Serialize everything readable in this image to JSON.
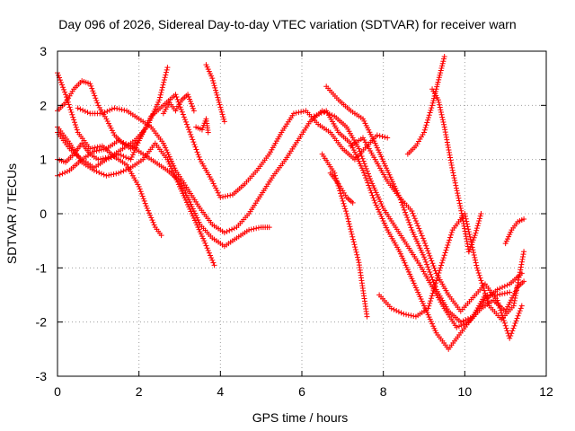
{
  "chart_data": {
    "type": "scatter",
    "title": "Day 096 of 2026, Sidereal Day-to-day VTEC variation (SDTVAR) for receiver warn",
    "xlabel": "GPS time / hours",
    "ylabel": "SDTVAR / TECUs",
    "xlim": [
      0,
      12
    ],
    "ylim": [
      -3,
      3
    ],
    "xticks": [
      "0",
      "2",
      "4",
      "6",
      "8",
      "10",
      "12"
    ],
    "yticks": [
      "-3",
      "-2",
      "-1",
      "0",
      "1",
      "2",
      "3"
    ],
    "grid": true,
    "legend": "none",
    "marker": "plus",
    "color": "#ff0000",
    "series": [
      {
        "x": [
          0.0,
          0.2,
          0.5,
          0.8,
          1.1,
          1.4,
          1.7,
          2.0,
          2.2,
          2.4,
          2.55
        ],
        "y": [
          2.6,
          2.2,
          1.5,
          1.2,
          1.25,
          1.05,
          0.9,
          0.5,
          0.1,
          -0.25,
          -0.4
        ]
      },
      {
        "x": [
          0.0,
          0.3,
          0.6,
          0.9,
          1.2,
          1.5,
          1.8,
          2.1,
          2.4,
          2.7,
          3.0,
          3.2,
          3.5,
          3.8,
          4.1,
          4.4,
          4.7,
          5.0,
          5.2
        ],
        "y": [
          0.7,
          0.8,
          1.0,
          1.15,
          1.2,
          1.35,
          1.25,
          1.1,
          0.95,
          0.8,
          0.6,
          0.3,
          -0.2,
          -0.45,
          -0.6,
          -0.45,
          -0.3,
          -0.25,
          -0.25
        ]
      },
      {
        "x": [
          0.0,
          0.2,
          0.4,
          0.6,
          0.8,
          1.0,
          1.3,
          1.6,
          1.9,
          2.2,
          2.5,
          2.7
        ],
        "y": [
          1.0,
          0.95,
          1.1,
          1.3,
          1.1,
          1.0,
          1.05,
          1.2,
          1.35,
          1.6,
          2.1,
          2.7
        ]
      },
      {
        "x": [
          0.0,
          0.2,
          0.4,
          0.6,
          0.8,
          1.0,
          1.2,
          1.4,
          1.6,
          1.8,
          2.0,
          2.1
        ],
        "y": [
          1.9,
          2.05,
          2.3,
          2.45,
          2.4,
          2.0,
          1.75,
          1.45,
          1.3,
          1.2,
          1.35,
          1.5
        ]
      },
      {
        "x": [
          0.0,
          0.3,
          0.6,
          0.9,
          1.2,
          1.5,
          1.8,
          2.1,
          2.4,
          2.7,
          3.0,
          3.3,
          3.6,
          3.85
        ],
        "y": [
          1.6,
          1.3,
          0.95,
          0.8,
          0.7,
          0.75,
          0.85,
          1.0,
          1.3,
          1.0,
          0.5,
          0.0,
          -0.5,
          -0.95
        ]
      },
      {
        "x": [
          0.0,
          0.3,
          0.6,
          0.9,
          1.2,
          1.5,
          1.8,
          2.0,
          2.3,
          2.6,
          2.9,
          3.2,
          3.5,
          3.8,
          4.0,
          4.3,
          4.6,
          4.9,
          5.2,
          5.5,
          5.8,
          6.1,
          6.4,
          6.7,
          7.0,
          7.3,
          7.6,
          7.85,
          8.1
        ],
        "y": [
          1.5,
          1.2,
          1.0,
          0.85,
          1.0,
          1.1,
          1.0,
          1.35,
          1.8,
          2.0,
          2.2,
          1.6,
          1.0,
          0.6,
          0.3,
          0.35,
          0.55,
          0.8,
          1.1,
          1.5,
          1.85,
          1.9,
          1.65,
          1.5,
          1.2,
          1.0,
          1.25,
          1.45,
          1.4
        ]
      },
      {
        "x": [
          0.5,
          0.8,
          1.1,
          1.4,
          1.7,
          2.0,
          2.3,
          2.6,
          2.9,
          3.2,
          3.5,
          3.8,
          4.1,
          4.4,
          4.7,
          5.0,
          5.3,
          5.6,
          5.9,
          6.2,
          6.5,
          6.8,
          7.1,
          7.4,
          7.7,
          8.0,
          8.3,
          8.6,
          8.9,
          9.2,
          9.5,
          9.8,
          10.1,
          10.4,
          10.7,
          11.0,
          11.3,
          11.45
        ],
        "y": [
          1.95,
          1.85,
          1.85,
          1.95,
          1.9,
          1.75,
          1.6,
          1.3,
          0.8,
          0.45,
          0.1,
          -0.2,
          -0.35,
          -0.25,
          0.0,
          0.35,
          0.7,
          1.0,
          1.35,
          1.7,
          1.9,
          1.8,
          1.6,
          1.2,
          0.6,
          0.1,
          -0.25,
          -0.6,
          -0.95,
          -1.35,
          -1.75,
          -2.1,
          -2.0,
          -1.75,
          -1.6,
          -1.8,
          -1.35,
          -1.25
        ]
      },
      {
        "x": [
          2.6,
          2.75,
          2.9,
          3.05,
          3.2,
          3.35
        ],
        "y": [
          1.85,
          2.05,
          1.9,
          2.1,
          2.2,
          1.9
        ]
      },
      {
        "x": [
          3.65,
          3.8,
          3.95,
          4.1
        ],
        "y": [
          2.75,
          2.5,
          2.1,
          1.7
        ]
      },
      {
        "x": [
          3.4,
          3.55,
          3.65,
          3.7
        ],
        "y": [
          1.6,
          1.55,
          1.75,
          1.5
        ]
      },
      {
        "x": [
          6.3,
          6.6,
          6.9,
          7.2,
          7.5,
          7.8,
          8.1,
          8.4,
          8.7,
          9.0,
          9.3,
          9.6,
          9.9,
          10.2,
          10.5,
          10.8,
          11.1,
          11.4
        ],
        "y": [
          1.8,
          1.9,
          1.5,
          1.3,
          0.8,
          0.2,
          -0.3,
          -0.7,
          -1.2,
          -1.7,
          -2.2,
          -2.5,
          -2.2,
          -1.9,
          -1.6,
          -1.4,
          -1.3,
          -1.1
        ]
      },
      {
        "x": [
          6.6,
          6.9,
          7.2,
          7.5,
          7.8,
          8.1,
          8.4,
          8.7,
          9.0,
          9.3,
          9.6,
          9.9,
          10.2,
          10.5,
          10.8,
          11.1
        ],
        "y": [
          2.35,
          2.1,
          1.9,
          1.75,
          1.3,
          0.8,
          0.3,
          -0.3,
          -0.8,
          -1.4,
          -1.8,
          -2.0,
          -1.9,
          -1.5,
          -1.5,
          -1.45
        ]
      },
      {
        "x": [
          6.5,
          6.8,
          7.1,
          7.4,
          7.6
        ],
        "y": [
          1.1,
          0.75,
          0.0,
          -0.9,
          -1.9
        ]
      },
      {
        "x": [
          6.7,
          6.9,
          7.1,
          7.25
        ],
        "y": [
          0.75,
          0.55,
          0.3,
          0.2
        ]
      },
      {
        "x": [
          7.2,
          7.5,
          7.8,
          8.1,
          8.4,
          8.7,
          9.0,
          9.3,
          9.6,
          9.9,
          10.2,
          10.5,
          10.8,
          11.1,
          11.4
        ],
        "y": [
          1.25,
          1.4,
          1.0,
          0.6,
          0.3,
          0.05,
          -0.5,
          -1.1,
          -1.5,
          -1.8,
          -1.55,
          -1.3,
          -1.6,
          -2.3,
          -1.7
        ]
      },
      {
        "x": [
          7.9,
          8.2,
          8.5,
          8.8,
          9.1,
          9.4,
          9.7,
          10.0,
          10.3,
          10.6,
          10.9,
          11.2,
          11.45
        ],
        "y": [
          -1.5,
          -1.75,
          -1.85,
          -1.9,
          -1.75,
          -1.0,
          -0.3,
          0.0,
          -1.0,
          -1.7,
          -1.95,
          -1.7,
          -0.7
        ]
      },
      {
        "x": [
          8.6,
          8.8,
          9.0,
          9.2,
          9.3,
          9.4,
          9.5
        ],
        "y": [
          1.1,
          1.25,
          1.5,
          2.0,
          2.3,
          2.6,
          2.9
        ]
      },
      {
        "x": [
          9.2,
          9.35,
          9.5,
          9.7,
          9.9,
          10.1
        ],
        "y": [
          2.3,
          2.1,
          1.6,
          0.8,
          0.1,
          -0.7
        ]
      },
      {
        "x": [
          10.1,
          10.25,
          10.4
        ],
        "y": [
          -0.7,
          -0.4,
          0.0
        ]
      },
      {
        "x": [
          11.0,
          11.15,
          11.3,
          11.45
        ],
        "y": [
          -0.55,
          -0.3,
          -0.15,
          -0.1
        ]
      }
    ]
  }
}
